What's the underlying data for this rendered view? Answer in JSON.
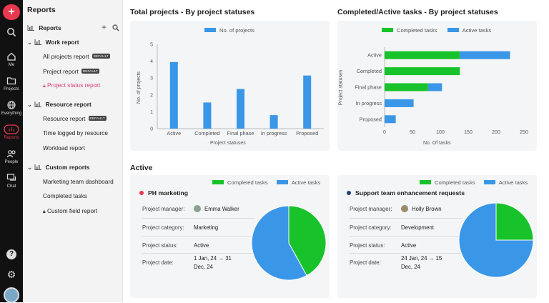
{
  "rail": {
    "logo_glyph": "+",
    "items": [
      {
        "label": "",
        "icon": "search-icon"
      },
      {
        "label": "Me",
        "icon": "home-icon"
      },
      {
        "label": "Projects",
        "icon": "folder-icon"
      },
      {
        "label": "Everything",
        "icon": "globe-icon"
      },
      {
        "label": "Reports",
        "icon": "reports-icon"
      },
      {
        "label": "People",
        "icon": "people-icon"
      },
      {
        "label": "Chat",
        "icon": "chat-icon"
      }
    ],
    "help_glyph": "?",
    "settings_glyph": "⚙"
  },
  "sidebar": {
    "title": "Reports",
    "reports_label": "Reports",
    "groups": [
      {
        "label": "Work report",
        "items": [
          {
            "label": "All projects report",
            "badge": "DEFAULT"
          },
          {
            "label": "Project report",
            "badge": "DEFAULT"
          },
          {
            "label": "Project status report",
            "badge": ""
          }
        ]
      },
      {
        "label": "Resource report",
        "items": [
          {
            "label": "Resource report",
            "badge": "DEFAULT"
          },
          {
            "label": "Time logged by resource",
            "badge": ""
          },
          {
            "label": "Workload report",
            "badge": ""
          }
        ]
      },
      {
        "label": "Custom reports",
        "items": [
          {
            "label": "Marketing team dashboard",
            "badge": ""
          },
          {
            "label": "Completed tasks",
            "badge": ""
          },
          {
            "label": "Custom field report",
            "badge": ""
          }
        ]
      }
    ]
  },
  "colors": {
    "green": "#17c22a",
    "blue": "#3a96e6",
    "accent_pink": "#d8407a"
  },
  "chart_data": [
    {
      "type": "bar",
      "title": "Total projects - By project statuses",
      "categories": [
        "Active",
        "Completed",
        "Final phase",
        "In progress",
        "Proposed"
      ],
      "series": [
        {
          "name": "No. of projects",
          "values": [
            3.95,
            1.55,
            2.35,
            0.8,
            3.15
          ]
        }
      ],
      "xlabel": "Project statuses",
      "ylabel": "No. of projects",
      "ylim": [
        0,
        5
      ],
      "yticks": [
        "0",
        "1",
        "2",
        "3",
        "4",
        "5"
      ]
    },
    {
      "type": "bar",
      "orientation": "horizontal",
      "stacked": true,
      "title": "Completed/Active tasks - By project statuses",
      "categories": [
        "Active",
        "Completed",
        "Final phase",
        "In progress",
        "Proposed"
      ],
      "series": [
        {
          "name": "Completed tasks",
          "values": [
            135,
            135,
            78,
            0,
            0
          ]
        },
        {
          "name": "Active tasks",
          "values": [
            90,
            0,
            25,
            52,
            20
          ]
        }
      ],
      "xlabel": "No. Of tasks",
      "ylabel": "Project statuses",
      "xlim": [
        0,
        250
      ],
      "xticks": [
        "0",
        "50",
        "100",
        "150",
        "200",
        "250"
      ]
    },
    {
      "type": "pie",
      "title": "PH marketing",
      "labels": [
        "Completed tasks",
        "Active tasks"
      ],
      "values": [
        42,
        58
      ]
    },
    {
      "type": "pie",
      "title": "Support team enhancement requests",
      "labels": [
        "Completed tasks",
        "Active tasks"
      ],
      "values": [
        25,
        75
      ]
    }
  ],
  "active_section": {
    "heading": "Active",
    "legend": {
      "completed": "Completed tasks",
      "active": "Active tasks"
    },
    "projects": [
      {
        "name": "PH marketing",
        "dot_color": "#e8384f",
        "manager_label": "Project manager:",
        "manager": "Emma Walker",
        "category_label": "Project category:",
        "category": "Marketing",
        "status_label": "Project status:",
        "status": "Active",
        "date_label": "Project date:",
        "date_line1": "1 Jan, 24 → 31",
        "date_line2": "Dec, 24"
      },
      {
        "name": "Support team enhancement requests",
        "dot_color": "#1f3f73",
        "manager_label": "Project manager:",
        "manager": "Holly Brown",
        "category_label": "Project category:",
        "category": "Development",
        "status_label": "Project status:",
        "status": "Active",
        "date_label": "Project date:",
        "date_line1": "24 Jan, 24 → 15",
        "date_line2": "Dec, 24"
      }
    ]
  }
}
